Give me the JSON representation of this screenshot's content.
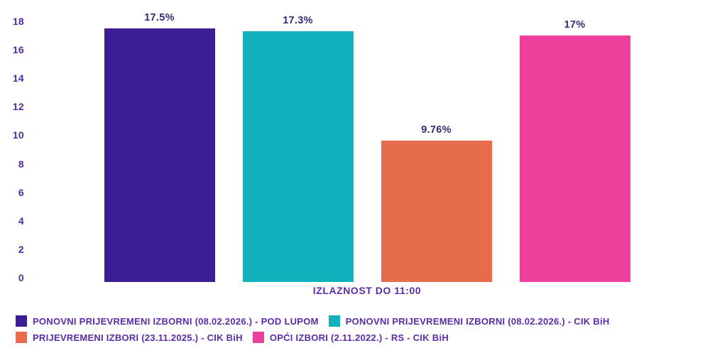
{
  "chart_data": {
    "type": "bar",
    "title": "",
    "xlabel": "IZLAZNOST DO 11:00",
    "ylabel": "",
    "ylim": [
      0,
      18
    ],
    "yticks": [
      0,
      2,
      4,
      6,
      8,
      10,
      12,
      14,
      16,
      18
    ],
    "grid": false,
    "legend_position": "bottom-left",
    "series": [
      {
        "name": "PONOVNI PRIJEVREMENI IZBORNI (08.02.2026.) - POD LUPOM",
        "value": 17.5,
        "label": "17.5%",
        "color": "#3d1d96"
      },
      {
        "name": "PONOVNI PRIJEVREMENI IZBORNI (08.02.2026.) - CIK BiH",
        "value": 17.3,
        "label": "17.3%",
        "color": "#10b1bc"
      },
      {
        "name": "PRIJEVREMENI IZBORI (23.11.2025.) - CIK BiH",
        "value": 9.76,
        "label": "9.76%",
        "color": "#e66c4d"
      },
      {
        "name": "OPĆI IZBORI (2.11.2022.) - RS - CIK BiH",
        "value": 17,
        "label": "17%",
        "color": "#ed3f9c"
      }
    ]
  },
  "colors": {
    "background": "#ffffff",
    "tick_label": "#4f2aa0",
    "value_label": "#3c2a74",
    "axis_label": "#5c2ba6",
    "legend_text": "#5c2ba6"
  }
}
